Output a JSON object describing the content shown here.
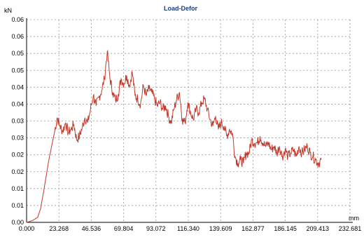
{
  "chart_data": {
    "type": "line",
    "title": "Load-Defor",
    "ylabel": "kN",
    "xlabel": "mm",
    "xlim": [
      0,
      232.681
    ],
    "ylim": [
      0,
      0.06
    ],
    "x_ticks": [
      0,
      23.268,
      46.536,
      69.804,
      93.072,
      116.34,
      139.609,
      162.877,
      186.145,
      209.413,
      232.681
    ],
    "x_tick_labels": [
      "0.000",
      "23.268",
      "46.536",
      "69.804",
      "93.072",
      "116.340",
      "139.609",
      "162.877",
      "186.145",
      "209.413",
      "232.681"
    ],
    "y_ticks": [
      0,
      0.005,
      0.01,
      0.015,
      0.02,
      0.025,
      0.03,
      0.035,
      0.04,
      0.045,
      0.05,
      0.055,
      0.06
    ],
    "y_tick_labels": [
      "0.00",
      "0.01",
      "0.01",
      "0.02",
      "0.02",
      "0.03",
      "0.03",
      "0.04",
      "0.04",
      "0.05",
      "0.05",
      "0.06",
      "0.06"
    ],
    "grid": true,
    "line_color": "#c0392b",
    "series": [
      {
        "x": [
          0,
          4,
          8,
          10,
          12,
          14,
          16,
          18,
          20,
          22,
          24,
          26,
          28,
          30,
          32,
          34,
          36,
          38,
          40,
          42,
          44,
          46,
          48,
          50,
          52,
          54,
          56,
          58,
          60,
          62,
          64,
          66,
          68,
          70,
          72,
          74,
          76,
          78,
          80,
          82,
          84,
          86,
          88,
          90,
          92,
          94,
          96,
          98,
          100,
          102,
          104,
          106,
          108,
          110,
          112,
          114,
          116,
          118,
          120,
          122,
          124,
          126,
          128,
          130,
          132,
          134,
          136,
          138,
          140,
          142,
          144,
          146,
          148,
          150,
          152,
          154,
          156,
          158,
          160,
          162,
          164,
          166,
          168,
          170,
          172,
          174,
          176,
          178,
          180,
          182,
          184,
          186,
          188,
          190,
          192,
          194,
          196,
          198,
          200,
          202,
          204,
          206,
          208,
          210,
          212
        ],
        "y": [
          0,
          0.0005,
          0.0015,
          0.004,
          0.0085,
          0.0135,
          0.0185,
          0.0225,
          0.0265,
          0.031,
          0.0285,
          0.027,
          0.0295,
          0.0265,
          0.0275,
          0.029,
          0.0245,
          0.0255,
          0.028,
          0.031,
          0.0295,
          0.0335,
          0.0375,
          0.0345,
          0.037,
          0.039,
          0.0425,
          0.0505,
          0.0425,
          0.0385,
          0.036,
          0.038,
          0.0425,
          0.041,
          0.0435,
          0.0405,
          0.0445,
          0.0375,
          0.0365,
          0.035,
          0.0405,
          0.0375,
          0.0395,
          0.0385,
          0.0365,
          0.0345,
          0.0355,
          0.0335,
          0.0345,
          0.0315,
          0.0295,
          0.0335,
          0.0365,
          0.0385,
          0.0305,
          0.0295,
          0.0355,
          0.0325,
          0.0305,
          0.0335,
          0.0325,
          0.0355,
          0.0365,
          0.0335,
          0.0305,
          0.0285,
          0.0315,
          0.0275,
          0.0295,
          0.0285,
          0.0255,
          0.0275,
          0.0265,
          0.0195,
          0.0175,
          0.0185,
          0.0175,
          0.0205,
          0.0205,
          0.0245,
          0.0235,
          0.0235,
          0.0255,
          0.0235,
          0.0225,
          0.0235,
          0.0215,
          0.0225,
          0.0205,
          0.0225,
          0.0195,
          0.0215,
          0.0195,
          0.0205,
          0.0215,
          0.0195,
          0.0225,
          0.0205,
          0.0215,
          0.0225,
          0.0205,
          0.0195,
          0.0185,
          0.0175,
          0.0185
        ]
      }
    ]
  }
}
